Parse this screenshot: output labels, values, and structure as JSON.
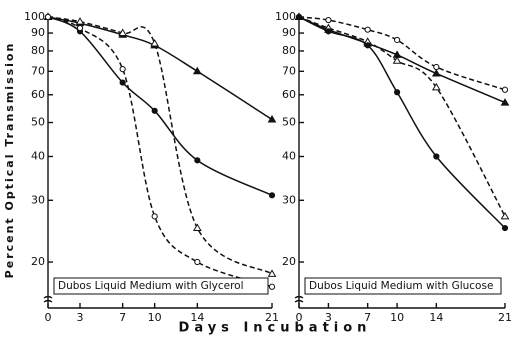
{
  "ylabel": "Percent Optical Transmission",
  "xlabel": "Days Incubation",
  "chart_data": [
    {
      "type": "line",
      "title": "Dubos Liquid Medium with Glycerol",
      "log_y": true,
      "x": [
        0,
        3,
        7,
        10,
        14,
        21
      ],
      "xlim": [
        0,
        21
      ],
      "xticks": [
        0,
        3,
        7,
        10,
        14,
        21
      ],
      "ylim": [
        16,
        100
      ],
      "yticks": [
        100,
        90,
        80,
        70,
        60,
        50,
        40,
        30,
        20
      ],
      "series": [
        {
          "color": "#111",
          "marker": "triangle",
          "dashed": false,
          "values": [
            100,
            96,
            89,
            83,
            70,
            51
          ]
        },
        {
          "color": "#111",
          "marker": "open-triangle",
          "dashed": true,
          "values": [
            100,
            97,
            90,
            84,
            25,
            18.5
          ]
        },
        {
          "color": "#111",
          "marker": "circle",
          "dashed": false,
          "values": [
            100,
            91,
            65,
            54,
            39,
            31
          ]
        },
        {
          "color": "#111",
          "marker": "open-circle",
          "dashed": true,
          "values": [
            100,
            93,
            71,
            27,
            20,
            17
          ]
        }
      ]
    },
    {
      "type": "line",
      "title": "Dubos Liquid Medium with Glucose",
      "log_y": true,
      "x": [
        0,
        3,
        7,
        10,
        14,
        21
      ],
      "xlim": [
        0,
        21
      ],
      "xticks": [
        0,
        3,
        7,
        10,
        14,
        21
      ],
      "ylim": [
        16,
        100
      ],
      "yticks": [
        100,
        90,
        80,
        70,
        60,
        50,
        40,
        30,
        20
      ],
      "series": [
        {
          "color": "#111",
          "marker": "triangle",
          "dashed": false,
          "values": [
            100,
            92,
            84,
            78,
            69,
            57
          ]
        },
        {
          "color": "#111",
          "marker": "open-triangle",
          "dashed": true,
          "values": [
            100,
            93,
            85,
            75,
            63,
            27
          ]
        },
        {
          "color": "#111",
          "marker": "open-circle",
          "dashed": true,
          "values": [
            100,
            98,
            92,
            86,
            72,
            62
          ]
        },
        {
          "color": "#111",
          "marker": "circle",
          "dashed": false,
          "values": [
            100,
            91,
            83,
            61,
            40,
            25
          ]
        }
      ]
    }
  ]
}
